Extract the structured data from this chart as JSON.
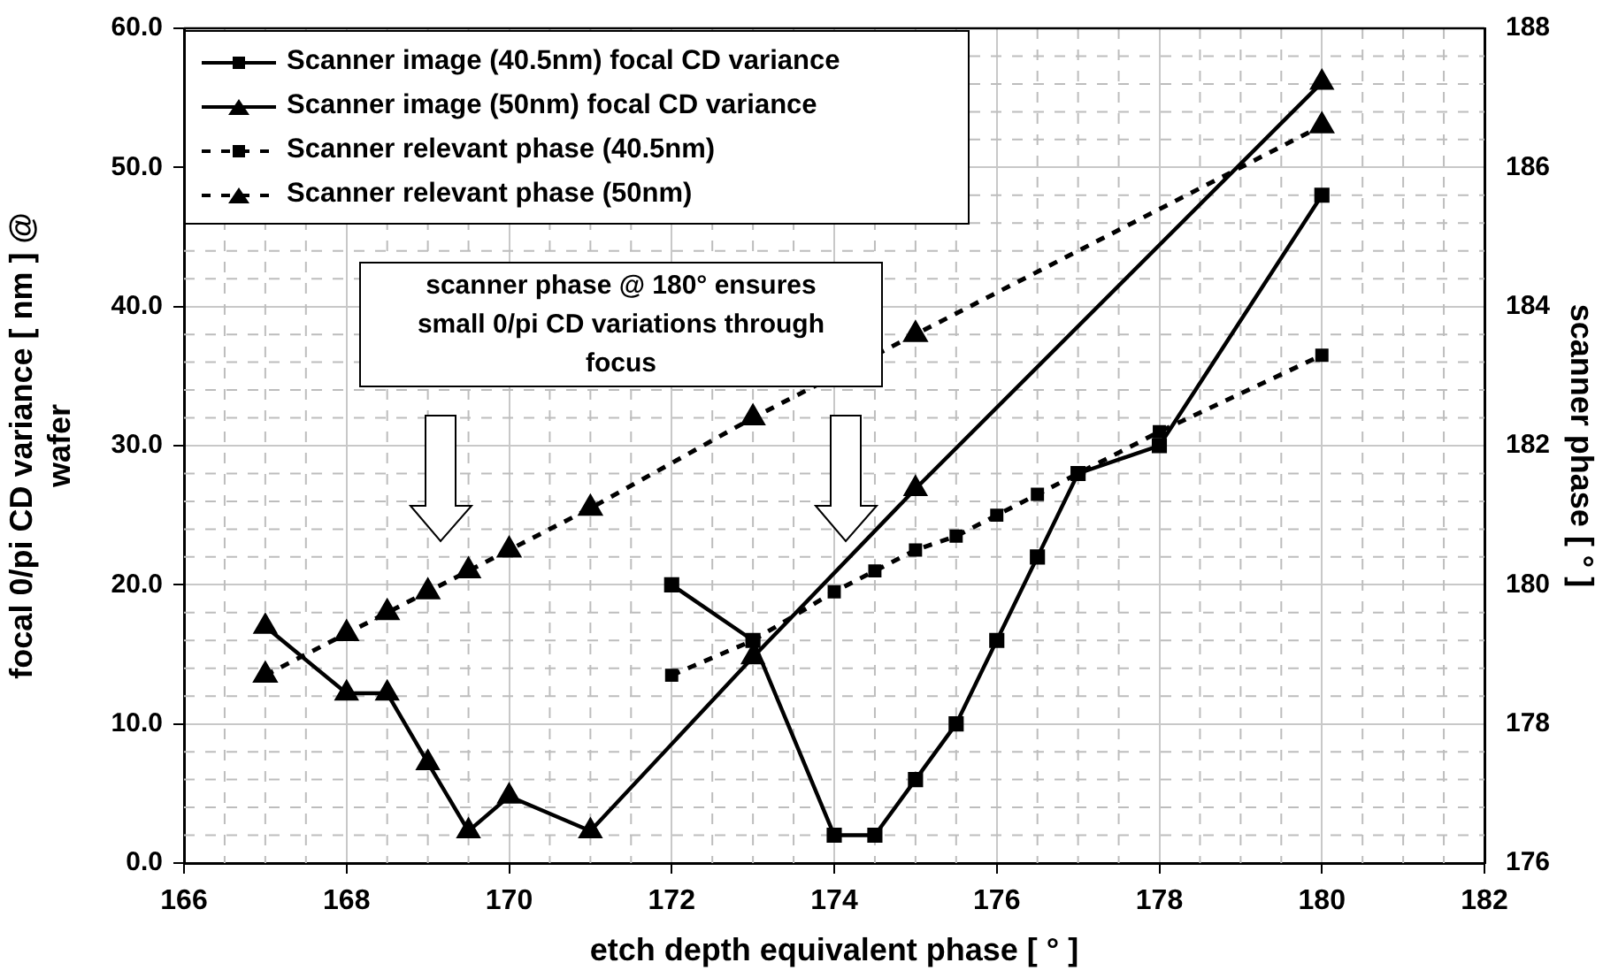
{
  "chart_data": {
    "type": "line",
    "xlabel": "etch depth equivalent phase [ ° ]",
    "ylabel": "focal 0/pi CD variance [ nm ] @\nwafer",
    "y2label": "scanner phase [ ° ]",
    "xlim": [
      166,
      182
    ],
    "xticks": [
      166,
      168,
      170,
      172,
      174,
      176,
      178,
      180,
      182
    ],
    "ylim": [
      0,
      60
    ],
    "yticks": [
      {
        "value": 0,
        "label": "0.0"
      },
      {
        "value": 10,
        "label": "10.0"
      },
      {
        "value": 20,
        "label": "20.0"
      },
      {
        "value": 30,
        "label": "30.0"
      },
      {
        "value": 40,
        "label": "40.0"
      },
      {
        "value": 50,
        "label": "50.0"
      },
      {
        "value": 60,
        "label": "60.0"
      }
    ],
    "y2lim": [
      176,
      188
    ],
    "y2ticks": [
      176,
      178,
      180,
      182,
      184,
      186,
      188
    ],
    "grid": true,
    "legend": "top left",
    "annotations": [
      "scanner phase @ 180° ensures small 0/pi CD variations through focus"
    ],
    "series": [
      {
        "name": "Scanner image (40.5nm) focal CD variance",
        "color": "#000000",
        "marker": "square",
        "line_style": "solid",
        "x": [
          172,
          173,
          174,
          174.5,
          175,
          175.5,
          176,
          176.5,
          177,
          178,
          180
        ],
        "values": [
          20,
          16,
          2,
          2,
          6,
          10,
          16,
          22,
          28,
          30,
          48
        ]
      },
      {
        "name": "Scanner image (50nm) focal CD variance",
        "color": "#000000",
        "marker": "triangle",
        "line_style": "solid",
        "x": [
          167,
          168,
          168.5,
          169,
          169.5,
          170,
          171,
          173,
          175,
          180
        ],
        "values": [
          17,
          12.2,
          12.2,
          7.2,
          2.3,
          4.8,
          2.3,
          14.8,
          26.9,
          56.1
        ]
      },
      {
        "name": "Scanner relevant phase (40.5nm)",
        "color": "#000000",
        "marker": "square",
        "line_style": "dashed",
        "axis": "y2",
        "x": [
          172,
          173,
          174,
          174.5,
          175,
          175.5,
          176,
          176.5,
          177,
          178,
          180
        ],
        "values": [
          178.7,
          179.2,
          179.9,
          180.2,
          180.5,
          180.7,
          181,
          181.3,
          181.6,
          182.2,
          183.3
        ]
      },
      {
        "name": "Scanner relevant phase (50nm)",
        "color": "#000000",
        "marker": "triangle",
        "line_style": "dashed",
        "axis": "y2",
        "x": [
          167,
          168,
          168.5,
          169,
          169.5,
          170,
          171,
          173,
          175,
          180
        ],
        "values": [
          178.7,
          179.3,
          179.6,
          179.9,
          180.2,
          180.5,
          181.1,
          182.4,
          183.6,
          186.6
        ]
      }
    ]
  }
}
